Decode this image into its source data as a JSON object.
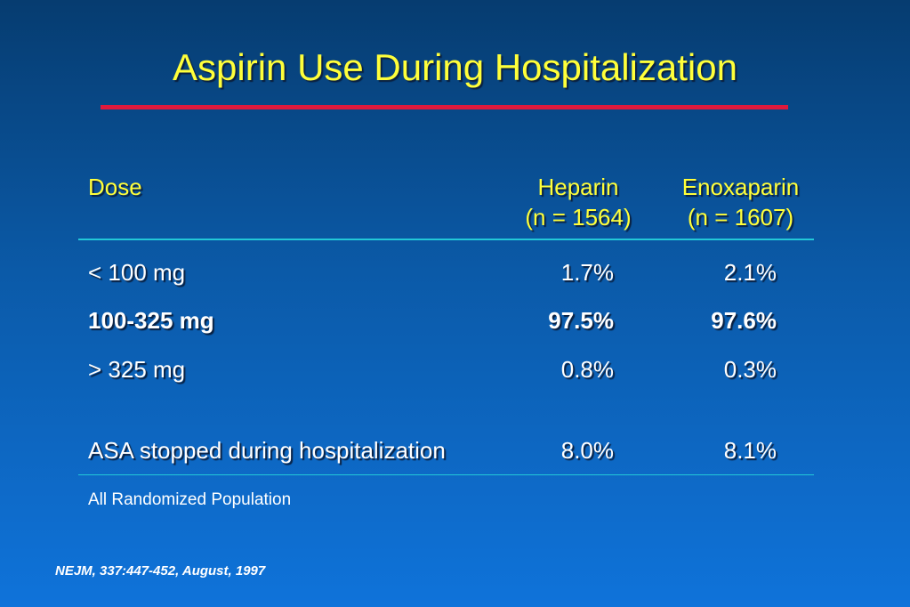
{
  "slide": {
    "title": "Aspirin Use During Hospitalization",
    "colors": {
      "title": "#ffff3a",
      "title_rule": "#e0193c",
      "table_rule": "#22c8d8",
      "background_top": "#063c70",
      "background_bottom": "#0f73da"
    }
  },
  "table": {
    "headers": {
      "dose": "Dose",
      "heparin_name": "Heparin",
      "heparin_n": "(n = 1564)",
      "enoxaparin_name": "Enoxaparin",
      "enoxaparin_n": "(n = 1607)"
    },
    "rows": [
      {
        "label": "< 100 mg",
        "heparin": "1.7%",
        "enoxaparin": "2.1%"
      },
      {
        "label": "100-325 mg",
        "heparin": "97.5%",
        "enoxaparin": "97.6%"
      },
      {
        "label": "> 325 mg",
        "heparin": "0.8%",
        "enoxaparin": "0.3%"
      },
      {
        "label": "ASA stopped during hospitalization",
        "heparin": "8.0%",
        "enoxaparin": "8.1%"
      }
    ]
  },
  "footnote": "All Randomized Population",
  "citation": "NEJM, 337:447-452, August, 1997"
}
